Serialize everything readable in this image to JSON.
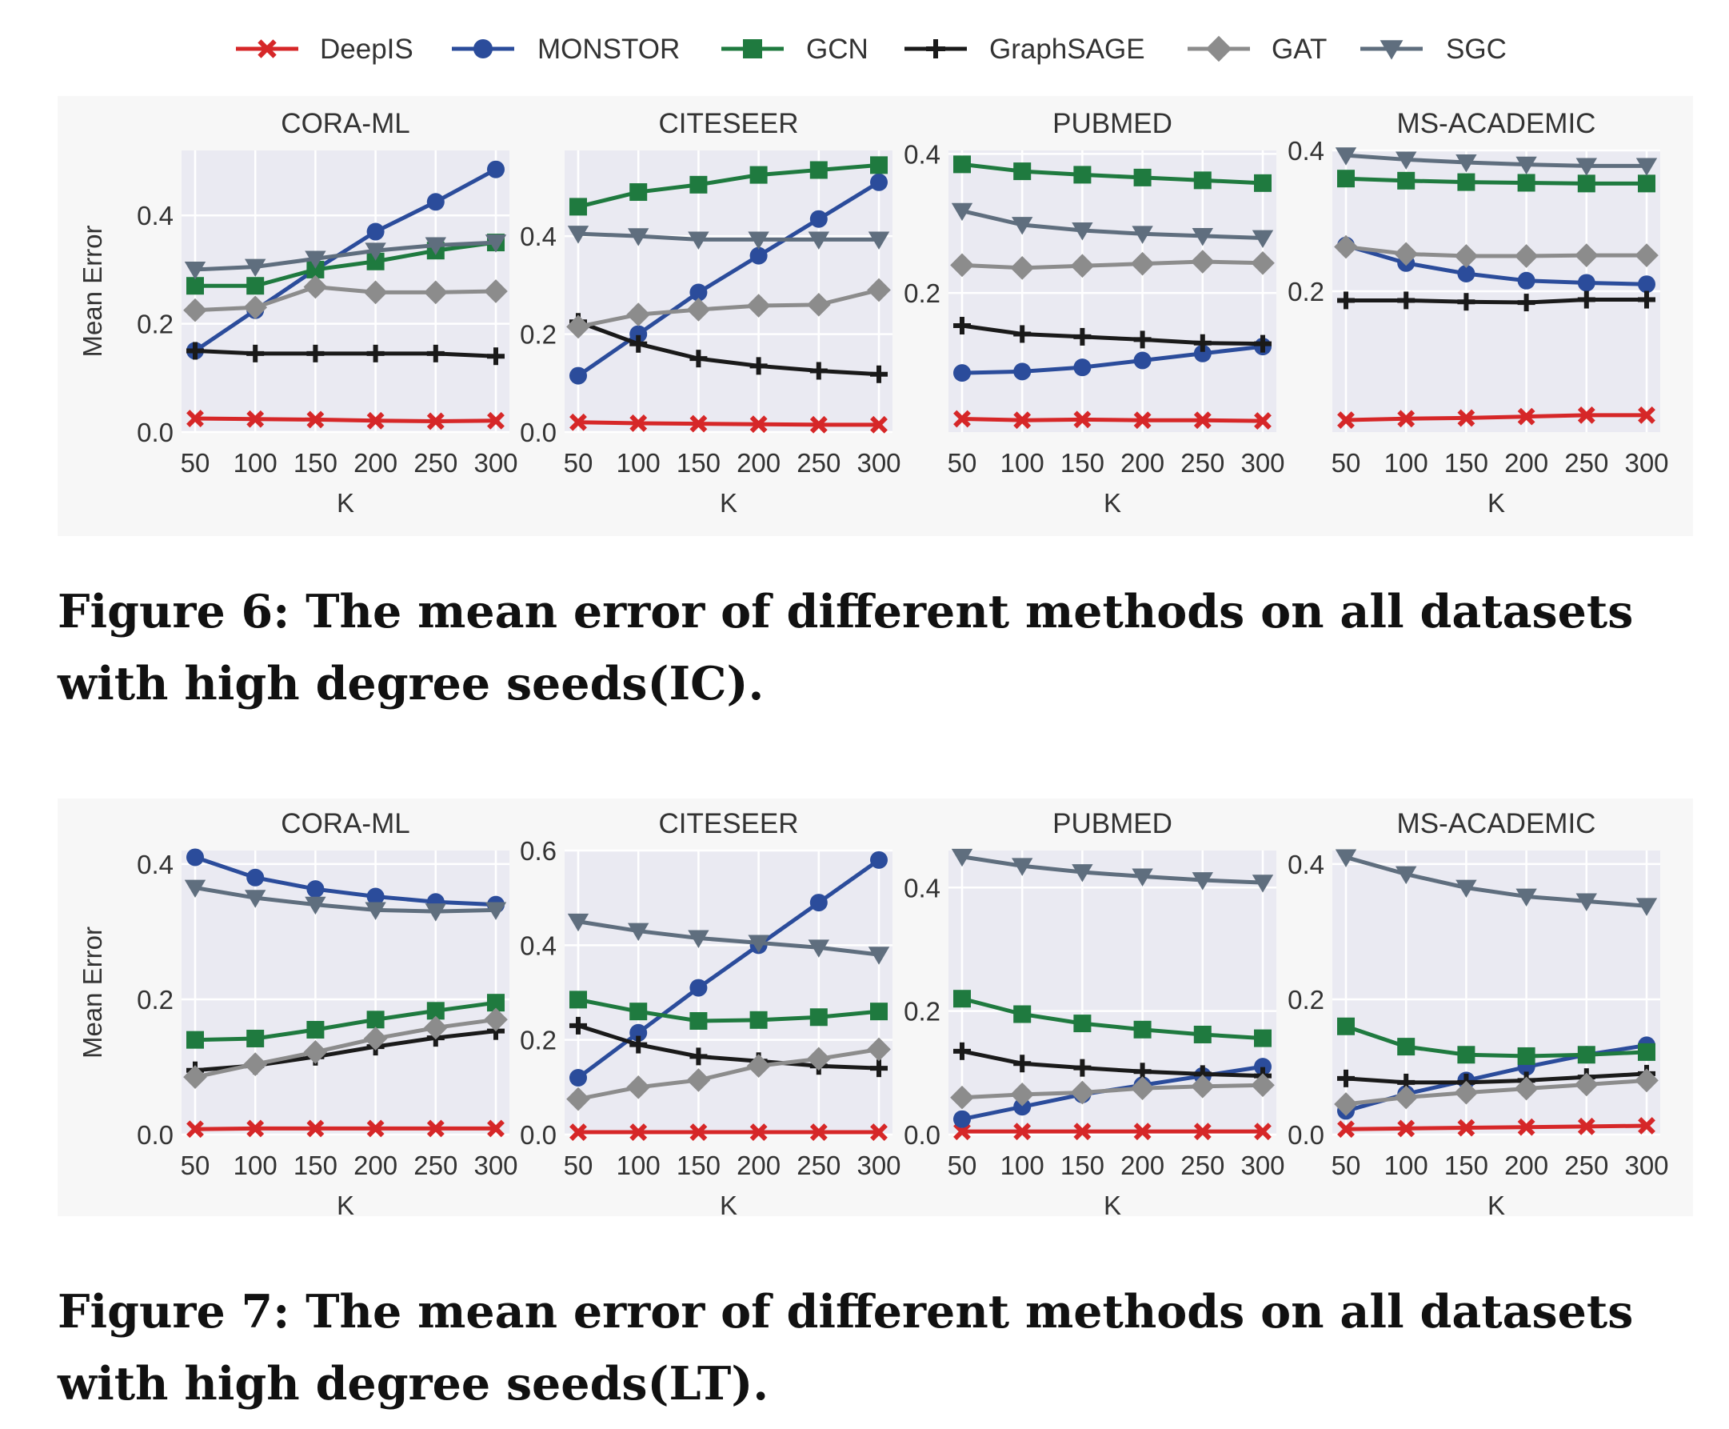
{
  "legend": [
    {
      "name": "DeepIS",
      "color": "#d62728",
      "marker": "x-mark"
    },
    {
      "name": "MONSTOR",
      "color": "#2b4c9b",
      "marker": "circle"
    },
    {
      "name": "GCN",
      "color": "#1f7a3f",
      "marker": "square"
    },
    {
      "name": "GraphSAGE",
      "color": "#1a1a1a",
      "marker": "plus"
    },
    {
      "name": "GAT",
      "color": "#8c8c8c",
      "marker": "diamond"
    },
    {
      "name": "SGC",
      "color": "#5f6e7e",
      "marker": "triangle-down"
    }
  ],
  "captions": {
    "fig6": "Figure 6: The mean error of different methods on all datasets with high degree seeds(IC).",
    "fig7": "Figure 7: The mean error of different methods on all datasets with high degree seeds(LT)."
  },
  "chart_data": [
    {
      "type": "line",
      "figure": "Figure 6",
      "title": "CORA-ML",
      "xlabel": "K",
      "ylabel": "Mean Error",
      "x": [
        50,
        100,
        150,
        200,
        250,
        300
      ],
      "ylim": [
        0.0,
        0.52
      ],
      "yticks": [
        0.0,
        0.2,
        0.4
      ],
      "ytick_labels": [
        "0.0",
        "0.2",
        "0.4"
      ],
      "series": [
        {
          "name": "DeepIS",
          "values": [
            0.025,
            0.024,
            0.023,
            0.021,
            0.02,
            0.021
          ]
        },
        {
          "name": "MONSTOR",
          "values": [
            0.15,
            0.225,
            0.3,
            0.37,
            0.425,
            0.485
          ]
        },
        {
          "name": "GCN",
          "values": [
            0.27,
            0.27,
            0.3,
            0.315,
            0.335,
            0.35
          ]
        },
        {
          "name": "GraphSAGE",
          "values": [
            0.15,
            0.145,
            0.145,
            0.145,
            0.145,
            0.14
          ]
        },
        {
          "name": "GAT",
          "values": [
            0.225,
            0.23,
            0.268,
            0.258,
            0.258,
            0.26
          ]
        },
        {
          "name": "SGC",
          "values": [
            0.3,
            0.305,
            0.32,
            0.335,
            0.345,
            0.35
          ]
        }
      ]
    },
    {
      "type": "line",
      "figure": "Figure 6",
      "title": "CITESEER",
      "xlabel": "K",
      "ylabel": "",
      "x": [
        50,
        100,
        150,
        200,
        250,
        300
      ],
      "ylim": [
        0.0,
        0.575
      ],
      "yticks": [
        0.0,
        0.2,
        0.4
      ],
      "ytick_labels": [
        "0.0",
        "0.2",
        "0.4"
      ],
      "series": [
        {
          "name": "DeepIS",
          "values": [
            0.02,
            0.018,
            0.017,
            0.016,
            0.015,
            0.015
          ]
        },
        {
          "name": "MONSTOR",
          "values": [
            0.115,
            0.2,
            0.285,
            0.36,
            0.435,
            0.51
          ]
        },
        {
          "name": "GCN",
          "values": [
            0.46,
            0.49,
            0.505,
            0.525,
            0.535,
            0.545
          ]
        },
        {
          "name": "GraphSAGE",
          "values": [
            0.225,
            0.18,
            0.15,
            0.135,
            0.125,
            0.118
          ]
        },
        {
          "name": "GAT",
          "values": [
            0.215,
            0.24,
            0.25,
            0.258,
            0.26,
            0.29
          ]
        },
        {
          "name": "SGC",
          "values": [
            0.405,
            0.4,
            0.393,
            0.393,
            0.393,
            0.393
          ]
        }
      ]
    },
    {
      "type": "line",
      "figure": "Figure 6",
      "title": "PUBMED",
      "xlabel": "K",
      "ylabel": "",
      "x": [
        50,
        100,
        150,
        200,
        250,
        300
      ],
      "ylim": [
        0.0,
        0.405
      ],
      "yticks": [
        0.2,
        0.4
      ],
      "ytick_labels": [
        "0.2",
        "0.4"
      ],
      "series": [
        {
          "name": "DeepIS",
          "values": [
            0.019,
            0.017,
            0.018,
            0.017,
            0.017,
            0.016
          ]
        },
        {
          "name": "MONSTOR",
          "values": [
            0.085,
            0.087,
            0.093,
            0.103,
            0.113,
            0.123
          ]
        },
        {
          "name": "GCN",
          "values": [
            0.385,
            0.375,
            0.37,
            0.366,
            0.362,
            0.358
          ]
        },
        {
          "name": "GraphSAGE",
          "values": [
            0.153,
            0.141,
            0.137,
            0.133,
            0.128,
            0.127
          ]
        },
        {
          "name": "GAT",
          "values": [
            0.24,
            0.236,
            0.239,
            0.242,
            0.245,
            0.243
          ]
        },
        {
          "name": "SGC",
          "values": [
            0.318,
            0.298,
            0.29,
            0.285,
            0.282,
            0.279
          ]
        }
      ]
    },
    {
      "type": "line",
      "figure": "Figure 6",
      "title": "MS-ACADEMIC",
      "xlabel": "K",
      "ylabel": "",
      "x": [
        50,
        100,
        150,
        200,
        250,
        300
      ],
      "ylim": [
        0.0,
        0.4
      ],
      "yticks": [
        0.2,
        0.4
      ],
      "ytick_labels": [
        "0.2",
        "0.4"
      ],
      "series": [
        {
          "name": "DeepIS",
          "values": [
            0.017,
            0.019,
            0.02,
            0.022,
            0.024,
            0.024
          ]
        },
        {
          "name": "MONSTOR",
          "values": [
            0.265,
            0.24,
            0.225,
            0.215,
            0.212,
            0.21
          ]
        },
        {
          "name": "GCN",
          "values": [
            0.36,
            0.357,
            0.355,
            0.354,
            0.353,
            0.353
          ]
        },
        {
          "name": "GraphSAGE",
          "values": [
            0.187,
            0.187,
            0.185,
            0.184,
            0.188,
            0.188
          ]
        },
        {
          "name": "GAT",
          "values": [
            0.263,
            0.253,
            0.25,
            0.25,
            0.251,
            0.251
          ]
        },
        {
          "name": "SGC",
          "values": [
            0.393,
            0.387,
            0.383,
            0.38,
            0.378,
            0.378
          ]
        }
      ]
    },
    {
      "type": "line",
      "figure": "Figure 7",
      "title": "CORA-ML",
      "xlabel": "K",
      "ylabel": "Mean Error",
      "x": [
        50,
        100,
        150,
        200,
        250,
        300
      ],
      "ylim": [
        0.0,
        0.42
      ],
      "yticks": [
        0.0,
        0.2,
        0.4
      ],
      "ytick_labels": [
        "0.0",
        "0.2",
        "0.4"
      ],
      "series": [
        {
          "name": "DeepIS",
          "values": [
            0.008,
            0.009,
            0.009,
            0.009,
            0.009,
            0.009
          ]
        },
        {
          "name": "MONSTOR",
          "values": [
            0.41,
            0.38,
            0.363,
            0.352,
            0.344,
            0.34
          ]
        },
        {
          "name": "GCN",
          "values": [
            0.14,
            0.142,
            0.155,
            0.17,
            0.183,
            0.195
          ]
        },
        {
          "name": "GraphSAGE",
          "values": [
            0.095,
            0.102,
            0.115,
            0.13,
            0.143,
            0.153
          ]
        },
        {
          "name": "GAT",
          "values": [
            0.085,
            0.104,
            0.122,
            0.142,
            0.158,
            0.17
          ]
        },
        {
          "name": "SGC",
          "values": [
            0.365,
            0.35,
            0.34,
            0.332,
            0.33,
            0.332
          ]
        }
      ]
    },
    {
      "type": "line",
      "figure": "Figure 7",
      "title": "CITESEER",
      "xlabel": "K",
      "ylabel": "",
      "x": [
        50,
        100,
        150,
        200,
        250,
        300
      ],
      "ylim": [
        0.0,
        0.6
      ],
      "yticks": [
        0.0,
        0.2,
        0.4,
        0.6
      ],
      "ytick_labels": [
        "0.0",
        "0.2",
        "0.4",
        "0.6"
      ],
      "series": [
        {
          "name": "DeepIS",
          "values": [
            0.005,
            0.005,
            0.005,
            0.005,
            0.005,
            0.005
          ]
        },
        {
          "name": "MONSTOR",
          "values": [
            0.12,
            0.215,
            0.31,
            0.4,
            0.49,
            0.58
          ]
        },
        {
          "name": "GCN",
          "values": [
            0.285,
            0.26,
            0.24,
            0.242,
            0.248,
            0.26
          ]
        },
        {
          "name": "GraphSAGE",
          "values": [
            0.23,
            0.19,
            0.165,
            0.155,
            0.145,
            0.14
          ]
        },
        {
          "name": "GAT",
          "values": [
            0.075,
            0.1,
            0.115,
            0.145,
            0.16,
            0.18
          ]
        },
        {
          "name": "SGC",
          "values": [
            0.45,
            0.43,
            0.415,
            0.405,
            0.395,
            0.38
          ]
        }
      ]
    },
    {
      "type": "line",
      "figure": "Figure 7",
      "title": "PUBMED",
      "xlabel": "K",
      "ylabel": "",
      "x": [
        50,
        100,
        150,
        200,
        250,
        300
      ],
      "ylim": [
        0.0,
        0.46
      ],
      "yticks": [
        0.0,
        0.2,
        0.4
      ],
      "ytick_labels": [
        "0.0",
        "0.2",
        "0.4"
      ],
      "series": [
        {
          "name": "DeepIS",
          "values": [
            0.005,
            0.005,
            0.005,
            0.005,
            0.005,
            0.005
          ]
        },
        {
          "name": "MONSTOR",
          "values": [
            0.025,
            0.045,
            0.065,
            0.08,
            0.095,
            0.11
          ]
        },
        {
          "name": "GCN",
          "values": [
            0.22,
            0.195,
            0.18,
            0.17,
            0.162,
            0.156
          ]
        },
        {
          "name": "GraphSAGE",
          "values": [
            0.135,
            0.115,
            0.108,
            0.102,
            0.098,
            0.095
          ]
        },
        {
          "name": "GAT",
          "values": [
            0.06,
            0.065,
            0.068,
            0.075,
            0.078,
            0.08
          ]
        },
        {
          "name": "SGC",
          "values": [
            0.45,
            0.435,
            0.425,
            0.418,
            0.412,
            0.408
          ]
        }
      ]
    },
    {
      "type": "line",
      "figure": "Figure 7",
      "title": "MS-ACADEMIC",
      "xlabel": "K",
      "ylabel": "",
      "x": [
        50,
        100,
        150,
        200,
        250,
        300
      ],
      "ylim": [
        0.0,
        0.42
      ],
      "yticks": [
        0.0,
        0.2,
        0.4
      ],
      "ytick_labels": [
        "0.0",
        "0.2",
        "0.4"
      ],
      "series": [
        {
          "name": "DeepIS",
          "values": [
            0.008,
            0.009,
            0.01,
            0.011,
            0.012,
            0.013
          ]
        },
        {
          "name": "MONSTOR",
          "values": [
            0.035,
            0.06,
            0.08,
            0.1,
            0.118,
            0.132
          ]
        },
        {
          "name": "GCN",
          "values": [
            0.16,
            0.13,
            0.118,
            0.116,
            0.118,
            0.122
          ]
        },
        {
          "name": "GraphSAGE",
          "values": [
            0.083,
            0.077,
            0.077,
            0.08,
            0.085,
            0.09
          ]
        },
        {
          "name": "GAT",
          "values": [
            0.045,
            0.055,
            0.062,
            0.068,
            0.074,
            0.08
          ]
        },
        {
          "name": "SGC",
          "values": [
            0.41,
            0.385,
            0.365,
            0.352,
            0.345,
            0.338
          ]
        }
      ]
    }
  ]
}
